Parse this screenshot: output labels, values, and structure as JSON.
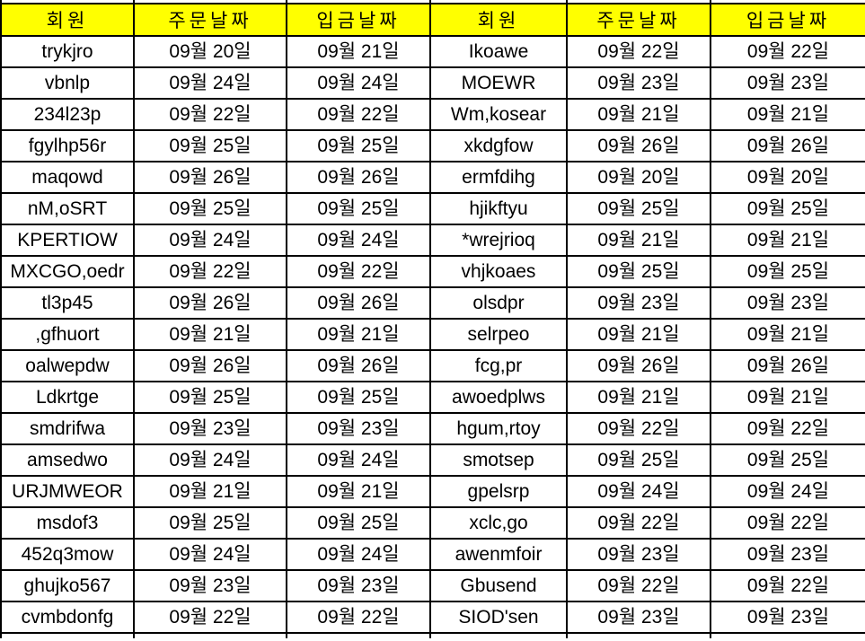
{
  "table": {
    "headers": [
      "회원",
      "주문날짜",
      "입금날짜",
      "회원",
      "주문날짜",
      "입금날짜"
    ],
    "column_semantics": [
      "member",
      "order-date",
      "deposit-date",
      "member",
      "order-date",
      "deposit-date"
    ],
    "rows": [
      [
        "trykjro",
        "09월 20일",
        "09월 21일",
        "Ikoawe",
        "09월 22일",
        "09월 22일"
      ],
      [
        "vbnlp",
        "09월 24일",
        "09월 24일",
        "MOEWR",
        "09월 23일",
        "09월 23일"
      ],
      [
        "234l23p",
        "09월 22일",
        "09월 22일",
        "Wm,kosear",
        "09월 21일",
        "09월 21일"
      ],
      [
        "fgylhp56r",
        "09월 25일",
        "09월 25일",
        "xkdgfow",
        "09월 26일",
        "09월 26일"
      ],
      [
        "maqowd",
        "09월 26일",
        "09월 26일",
        "ermfdihg",
        "09월 20일",
        "09월 20일"
      ],
      [
        "nM,oSRT",
        "09월 25일",
        "09월 25일",
        "hjikftyu",
        "09월 25일",
        "09월 25일"
      ],
      [
        "KPERTIOW",
        "09월 24일",
        "09월 24일",
        "*wrejrioq",
        "09월 21일",
        "09월 21일"
      ],
      [
        "MXCGO,oedr",
        "09월 22일",
        "09월 22일",
        "vhjkoaes",
        "09월 25일",
        "09월 25일"
      ],
      [
        "tl3p45",
        "09월 26일",
        "09월 26일",
        "olsdpr",
        "09월 23일",
        "09월 23일"
      ],
      [
        ",gfhuort",
        "09월 21일",
        "09월 21일",
        "selrpeo",
        "09월 21일",
        "09월 21일"
      ],
      [
        "oalwepdw",
        "09월 26일",
        "09월 26일",
        "fcg,pr",
        "09월 26일",
        "09월 26일"
      ],
      [
        "Ldkrtge",
        "09월 25일",
        "09월 25일",
        "awoedplws",
        "09월 21일",
        "09월 21일"
      ],
      [
        "smdrifwa",
        "09월 23일",
        "09월 23일",
        "hgum,rtoy",
        "09월 22일",
        "09월 22일"
      ],
      [
        "amsedwo",
        "09월 24일",
        "09월 24일",
        "smotsep",
        "09월 25일",
        "09월 25일"
      ],
      [
        "URJMWEOR",
        "09월 21일",
        "09월 21일",
        "gpelsrp",
        "09월 24일",
        "09월 24일"
      ],
      [
        "msdof3",
        "09월 25일",
        "09월 25일",
        "xclc,go",
        "09월 22일",
        "09월 22일"
      ],
      [
        "452q3mow",
        "09월 24일",
        "09월 24일",
        "awenmfoir",
        "09월 23일",
        "09월 23일"
      ],
      [
        "ghujko567",
        "09월 23일",
        "09월 23일",
        "Gbusend",
        "09월 22일",
        "09월 22일"
      ],
      [
        "cvmbdonfg",
        "09월 22일",
        "09월 22일",
        "SIOD'sen",
        "09월 23일",
        "09월 23일"
      ]
    ]
  },
  "colors": {
    "header_bg": "#FFFF00",
    "border": "#000000",
    "text": "#000000",
    "body_bg": "#FFFFFF"
  }
}
